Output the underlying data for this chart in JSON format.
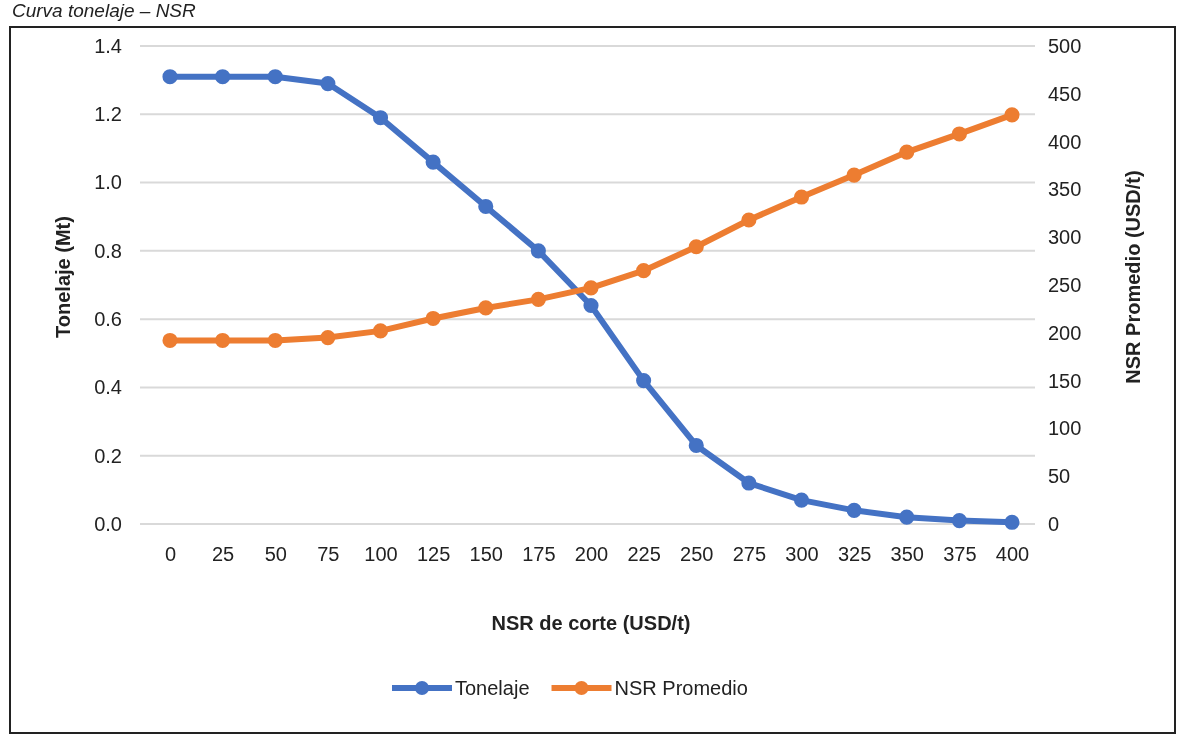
{
  "chart_data": {
    "type": "line",
    "title": "Curva tonelaje – NSR",
    "xlabel": "NSR de corte (USD/t)",
    "ylabel": "Tonelaje (Mt)",
    "y2label": "NSR Promedio (USD/t)",
    "categories": [
      "0",
      "25",
      "50",
      "75",
      "100",
      "125",
      "150",
      "175",
      "200",
      "225",
      "250",
      "275",
      "300",
      "325",
      "350",
      "375",
      "400"
    ],
    "series": [
      {
        "name": "Tonelaje",
        "color": "#4472c4",
        "values": [
          1.31,
          1.31,
          1.31,
          1.29,
          1.19,
          1.06,
          0.93,
          0.8,
          0.64,
          0.42,
          0.23,
          0.12,
          0.07,
          0.04,
          0.02,
          0.01,
          0.005
        ]
      },
      {
        "name": "NSR Promedio",
        "color": "#ed7d31",
        "axis": "y2",
        "values": [
          192,
          192,
          192,
          195,
          202,
          215,
          226,
          235,
          247,
          265,
          290,
          318,
          342,
          365,
          389,
          408,
          428
        ]
      }
    ],
    "ylim": [
      0,
      1.4
    ],
    "yticks": [
      {
        "value": 0,
        "label": "0.0"
      },
      {
        "value": 0.2,
        "label": "0.2"
      },
      {
        "value": 0.4,
        "label": "0.4"
      },
      {
        "value": 0.6,
        "label": "0.6"
      },
      {
        "value": 0.8,
        "label": "0.8"
      },
      {
        "value": 1,
        "label": "1.0"
      },
      {
        "value": 1.2,
        "label": "1.2"
      },
      {
        "value": 1.4,
        "label": "1.4"
      }
    ],
    "y2lim": [
      0,
      500
    ],
    "y2ticks": [
      0,
      50,
      100,
      150,
      200,
      250,
      300,
      350,
      400,
      450,
      500
    ],
    "grid": "y",
    "legend": "bottom",
    "marker": "circle",
    "line_style": "solid"
  }
}
